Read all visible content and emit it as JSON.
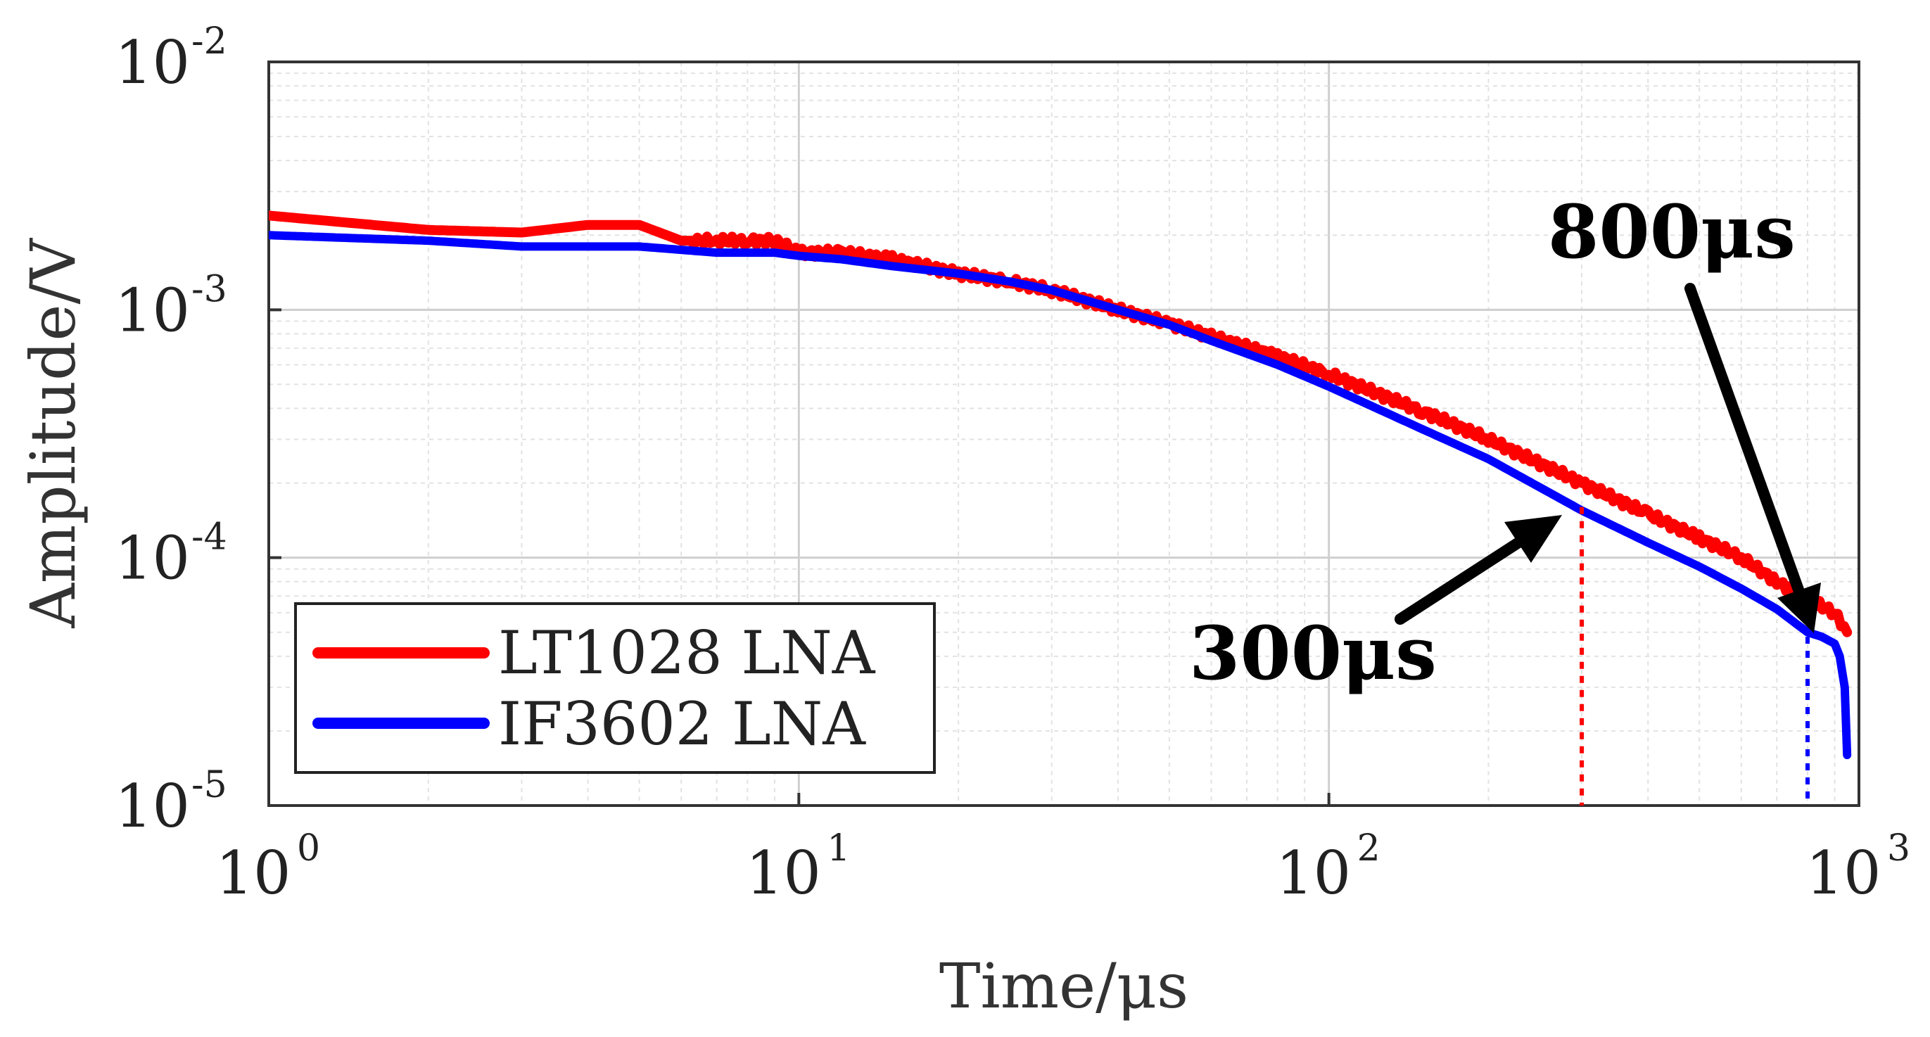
{
  "chart_data": {
    "type": "line",
    "title": "",
    "xlabel": "Time/μs",
    "ylabel": "Amplitude/V",
    "xscale": "log",
    "yscale": "log",
    "xlim": [
      1,
      1000
    ],
    "ylim": [
      1e-05,
      0.01
    ],
    "grid": true,
    "minor_grid": true,
    "x_ticks": [
      {
        "base": "10",
        "exp": "0",
        "value": 1
      },
      {
        "base": "10",
        "exp": "1",
        "value": 10
      },
      {
        "base": "10",
        "exp": "2",
        "value": 100
      },
      {
        "base": "10",
        "exp": "3",
        "value": 1000
      }
    ],
    "y_ticks": [
      {
        "base": "10",
        "exp": "-5",
        "value": 1e-05
      },
      {
        "base": "10",
        "exp": "-4",
        "value": 0.0001
      },
      {
        "base": "10",
        "exp": "-3",
        "value": 0.001
      },
      {
        "base": "10",
        "exp": "-2",
        "value": 0.01
      }
    ],
    "legend_position": "bottom-left",
    "series": [
      {
        "name": "LT1028 LNA",
        "color": "#ff0000",
        "x": [
          1,
          2,
          3,
          4,
          5,
          6,
          7,
          8,
          9,
          10,
          12,
          15,
          20,
          25,
          30,
          40,
          50,
          60,
          80,
          100,
          150,
          200,
          300,
          400,
          500,
          600,
          700,
          800,
          900,
          950
        ],
        "y": [
          0.0024,
          0.0021,
          0.00205,
          0.0022,
          0.0022,
          0.0019,
          0.0019,
          0.0019,
          0.0019,
          0.0017,
          0.0017,
          0.0016,
          0.0014,
          0.0013,
          0.0012,
          0.001,
          0.00088,
          0.00078,
          0.00065,
          0.00055,
          0.00039,
          0.0003,
          0.0002,
          0.00015,
          0.00012,
          0.0001,
          8e-05,
          6.8e-05,
          6e-05,
          5e-05
        ]
      },
      {
        "name": "IF3602 LNA",
        "color": "#0000ff",
        "x": [
          1,
          2,
          3,
          5,
          7,
          9,
          10,
          12,
          15,
          20,
          25,
          30,
          40,
          50,
          60,
          80,
          100,
          150,
          200,
          300,
          400,
          500,
          600,
          700,
          800,
          850,
          900,
          920,
          940,
          950
        ],
        "y": [
          0.002,
          0.0019,
          0.0018,
          0.0018,
          0.0017,
          0.0017,
          0.00165,
          0.0016,
          0.0015,
          0.0014,
          0.0013,
          0.0012,
          0.001,
          0.00087,
          0.00075,
          0.0006,
          0.00049,
          0.00033,
          0.00025,
          0.000155,
          0.000115,
          9.2e-05,
          7.5e-05,
          6.2e-05,
          5e-05,
          4.8e-05,
          4.5e-05,
          4e-05,
          3e-05,
          1.6e-05
        ]
      }
    ],
    "markers": [
      {
        "x": 300,
        "color": "#ff0000"
      },
      {
        "x": 800,
        "color": "#0000ff"
      }
    ],
    "annotations": [
      {
        "text": "300μs",
        "x": 300,
        "y": 0.00015
      },
      {
        "text": "800μs",
        "x": 800,
        "y": 5e-05
      }
    ]
  }
}
